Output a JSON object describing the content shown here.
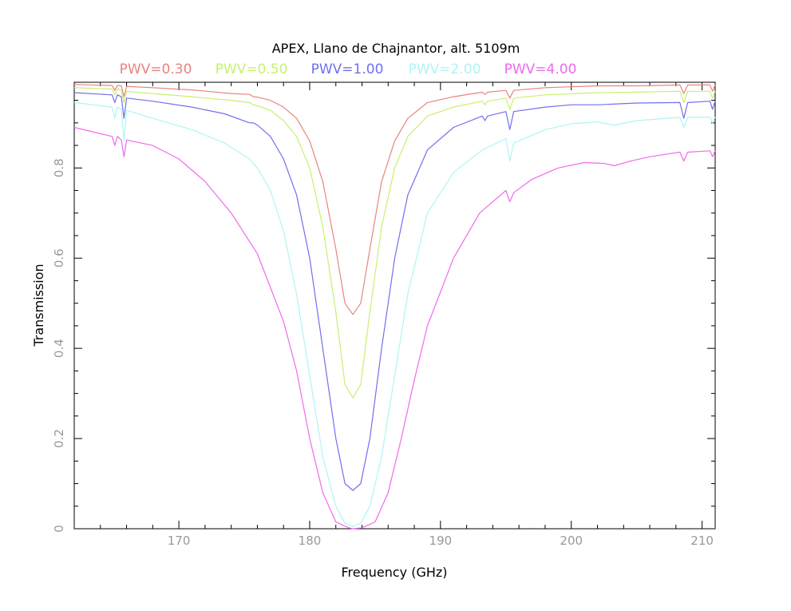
{
  "chart_data": {
    "type": "line",
    "title": "APEX, Llano de Chajnantor, alt. 5109m",
    "xlabel": "Frequency (GHz)",
    "ylabel": "Transmission",
    "xlim": [
      162,
      211
    ],
    "ylim": [
      0,
      0.99
    ],
    "xticks": [
      170,
      180,
      190,
      200,
      210
    ],
    "xtick_labels": [
      "170",
      "180",
      "190",
      "200",
      "210"
    ],
    "yticks": [
      0,
      0.2,
      0.4,
      0.6,
      0.8
    ],
    "ytick_labels": [
      "0",
      "0.2",
      "0.4",
      "0.6",
      "0.8"
    ],
    "grid": false,
    "legend_position": "top",
    "series": [
      {
        "name": "PWV=0.30",
        "color": "#e8847e",
        "points": [
          [
            162,
            0.985
          ],
          [
            164.9,
            0.983
          ],
          [
            165.1,
            0.972
          ],
          [
            165.3,
            0.983
          ],
          [
            165.6,
            0.982
          ],
          [
            165.8,
            0.958
          ],
          [
            166.0,
            0.981
          ],
          [
            168,
            0.978
          ],
          [
            171,
            0.973
          ],
          [
            174,
            0.965
          ],
          [
            175.4,
            0.963
          ],
          [
            175.7,
            0.958
          ],
          [
            176,
            0.957
          ],
          [
            177,
            0.95
          ],
          [
            178,
            0.935
          ],
          [
            179,
            0.91
          ],
          [
            180,
            0.86
          ],
          [
            181,
            0.77
          ],
          [
            182,
            0.62
          ],
          [
            182.7,
            0.5
          ],
          [
            183.3,
            0.475
          ],
          [
            183.9,
            0.5
          ],
          [
            184.6,
            0.62
          ],
          [
            185.5,
            0.77
          ],
          [
            186.5,
            0.86
          ],
          [
            187.5,
            0.91
          ],
          [
            189,
            0.945
          ],
          [
            191,
            0.958
          ],
          [
            193.2,
            0.968
          ],
          [
            193.4,
            0.963
          ],
          [
            193.6,
            0.968
          ],
          [
            195,
            0.972
          ],
          [
            195.3,
            0.955
          ],
          [
            195.6,
            0.972
          ],
          [
            198,
            0.978
          ],
          [
            202,
            0.982
          ],
          [
            205,
            0.982
          ],
          [
            208.3,
            0.984
          ],
          [
            208.6,
            0.965
          ],
          [
            208.9,
            0.984
          ],
          [
            210.6,
            0.984
          ],
          [
            210.8,
            0.97
          ],
          [
            211,
            0.984
          ]
        ]
      },
      {
        "name": "PWV=0.50",
        "color": "#c8f070",
        "points": [
          [
            162,
            0.978
          ],
          [
            164.9,
            0.975
          ],
          [
            165.1,
            0.962
          ],
          [
            165.3,
            0.975
          ],
          [
            165.6,
            0.972
          ],
          [
            165.8,
            0.945
          ],
          [
            166.0,
            0.97
          ],
          [
            168,
            0.965
          ],
          [
            171,
            0.958
          ],
          [
            174,
            0.95
          ],
          [
            175.4,
            0.945
          ],
          [
            175.7,
            0.94
          ],
          [
            176,
            0.938
          ],
          [
            177,
            0.928
          ],
          [
            178,
            0.905
          ],
          [
            179,
            0.87
          ],
          [
            180,
            0.8
          ],
          [
            181,
            0.67
          ],
          [
            182,
            0.48
          ],
          [
            182.7,
            0.32
          ],
          [
            183.3,
            0.29
          ],
          [
            183.9,
            0.32
          ],
          [
            184.6,
            0.48
          ],
          [
            185.5,
            0.67
          ],
          [
            186.5,
            0.8
          ],
          [
            187.5,
            0.87
          ],
          [
            189,
            0.915
          ],
          [
            191,
            0.935
          ],
          [
            193.2,
            0.948
          ],
          [
            193.4,
            0.94
          ],
          [
            193.6,
            0.948
          ],
          [
            195,
            0.955
          ],
          [
            195.3,
            0.93
          ],
          [
            195.6,
            0.955
          ],
          [
            198,
            0.962
          ],
          [
            202,
            0.967
          ],
          [
            205,
            0.968
          ],
          [
            208.3,
            0.97
          ],
          [
            208.6,
            0.945
          ],
          [
            208.9,
            0.97
          ],
          [
            210.6,
            0.97
          ],
          [
            210.8,
            0.955
          ],
          [
            211,
            0.97
          ]
        ]
      },
      {
        "name": "PWV=1.00",
        "color": "#7070ee",
        "points": [
          [
            162,
            0.967
          ],
          [
            164.9,
            0.962
          ],
          [
            165.1,
            0.945
          ],
          [
            165.3,
            0.962
          ],
          [
            165.6,
            0.958
          ],
          [
            165.8,
            0.91
          ],
          [
            166.0,
            0.955
          ],
          [
            168,
            0.948
          ],
          [
            171,
            0.935
          ],
          [
            173.5,
            0.92
          ],
          [
            175.4,
            0.9
          ],
          [
            175.7,
            0.9
          ],
          [
            176,
            0.895
          ],
          [
            177,
            0.87
          ],
          [
            178,
            0.82
          ],
          [
            179,
            0.74
          ],
          [
            180,
            0.6
          ],
          [
            181,
            0.4
          ],
          [
            182,
            0.2
          ],
          [
            182.7,
            0.1
          ],
          [
            183.3,
            0.085
          ],
          [
            183.9,
            0.1
          ],
          [
            184.6,
            0.2
          ],
          [
            185.5,
            0.4
          ],
          [
            186.5,
            0.6
          ],
          [
            187.5,
            0.74
          ],
          [
            189,
            0.84
          ],
          [
            191,
            0.89
          ],
          [
            193.2,
            0.915
          ],
          [
            193.4,
            0.905
          ],
          [
            193.6,
            0.915
          ],
          [
            195,
            0.925
          ],
          [
            195.3,
            0.885
          ],
          [
            195.6,
            0.925
          ],
          [
            198,
            0.935
          ],
          [
            200,
            0.94
          ],
          [
            202,
            0.94
          ],
          [
            205,
            0.944
          ],
          [
            208.3,
            0.945
          ],
          [
            208.6,
            0.91
          ],
          [
            208.9,
            0.945
          ],
          [
            210.6,
            0.948
          ],
          [
            210.8,
            0.93
          ],
          [
            211,
            0.948
          ]
        ]
      },
      {
        "name": "PWV=2.00",
        "color": "#b0f4f4",
        "points": [
          [
            162,
            0.945
          ],
          [
            164.9,
            0.935
          ],
          [
            165.1,
            0.91
          ],
          [
            165.3,
            0.935
          ],
          [
            165.6,
            0.93
          ],
          [
            165.8,
            0.86
          ],
          [
            166.0,
            0.928
          ],
          [
            168,
            0.91
          ],
          [
            171,
            0.885
          ],
          [
            173.5,
            0.855
          ],
          [
            175.4,
            0.82
          ],
          [
            176,
            0.8
          ],
          [
            177,
            0.75
          ],
          [
            178,
            0.66
          ],
          [
            179,
            0.52
          ],
          [
            180,
            0.34
          ],
          [
            181,
            0.16
          ],
          [
            182,
            0.05
          ],
          [
            182.7,
            0.012
          ],
          [
            183.3,
            0.005
          ],
          [
            183.9,
            0.012
          ],
          [
            184.6,
            0.05
          ],
          [
            185.5,
            0.16
          ],
          [
            186.5,
            0.34
          ],
          [
            187.5,
            0.52
          ],
          [
            189,
            0.7
          ],
          [
            191,
            0.79
          ],
          [
            193.2,
            0.84
          ],
          [
            195,
            0.865
          ],
          [
            195.3,
            0.815
          ],
          [
            195.6,
            0.855
          ],
          [
            198,
            0.885
          ],
          [
            200,
            0.898
          ],
          [
            202,
            0.902
          ],
          [
            203.3,
            0.895
          ],
          [
            205,
            0.905
          ],
          [
            208.3,
            0.912
          ],
          [
            208.6,
            0.89
          ],
          [
            208.9,
            0.912
          ],
          [
            210.6,
            0.913
          ],
          [
            210.8,
            0.9
          ],
          [
            211,
            0.913
          ]
        ]
      },
      {
        "name": "PWV=4.00",
        "color": "#ee6aee",
        "points": [
          [
            162,
            0.89
          ],
          [
            164.9,
            0.87
          ],
          [
            165.1,
            0.85
          ],
          [
            165.3,
            0.87
          ],
          [
            165.6,
            0.862
          ],
          [
            165.8,
            0.825
          ],
          [
            166.0,
            0.862
          ],
          [
            168,
            0.85
          ],
          [
            170,
            0.82
          ],
          [
            172,
            0.77
          ],
          [
            174,
            0.7
          ],
          [
            176,
            0.61
          ],
          [
            178,
            0.46
          ],
          [
            179,
            0.35
          ],
          [
            180,
            0.2
          ],
          [
            181,
            0.08
          ],
          [
            182,
            0.015
          ],
          [
            183,
            0.002
          ],
          [
            183.3,
            0.0
          ],
          [
            184,
            0.002
          ],
          [
            185,
            0.015
          ],
          [
            186,
            0.08
          ],
          [
            187,
            0.2
          ],
          [
            188,
            0.33
          ],
          [
            189,
            0.45
          ],
          [
            191,
            0.6
          ],
          [
            193,
            0.7
          ],
          [
            195,
            0.75
          ],
          [
            195.3,
            0.725
          ],
          [
            195.6,
            0.745
          ],
          [
            197,
            0.775
          ],
          [
            199,
            0.8
          ],
          [
            201,
            0.812
          ],
          [
            202.5,
            0.81
          ],
          [
            203.3,
            0.805
          ],
          [
            204.5,
            0.815
          ],
          [
            206,
            0.825
          ],
          [
            208.3,
            0.835
          ],
          [
            208.6,
            0.815
          ],
          [
            208.9,
            0.835
          ],
          [
            210.6,
            0.838
          ],
          [
            210.8,
            0.825
          ],
          [
            211,
            0.838
          ]
        ]
      }
    ]
  }
}
